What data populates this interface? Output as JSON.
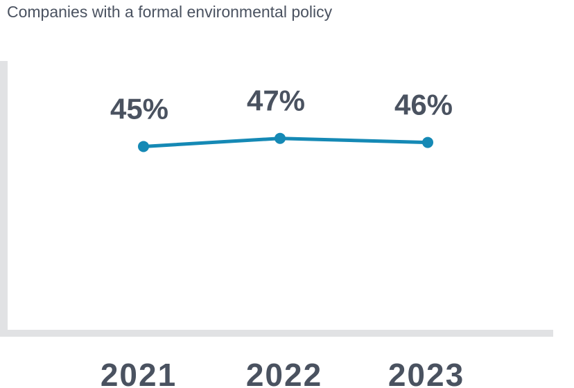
{
  "chart_data": {
    "type": "line",
    "title": "Companies with a formal environmental policy",
    "categories": [
      "2021",
      "2022",
      "2023"
    ],
    "values": [
      45,
      47,
      46
    ],
    "data_labels": [
      "45%",
      "47%",
      "46%"
    ],
    "ylim": [
      0,
      66
    ],
    "grid": false,
    "legend": "none",
    "colors": {
      "series": "#1589b5",
      "text": "#4a5260",
      "axis": "#e1e2e4"
    }
  }
}
